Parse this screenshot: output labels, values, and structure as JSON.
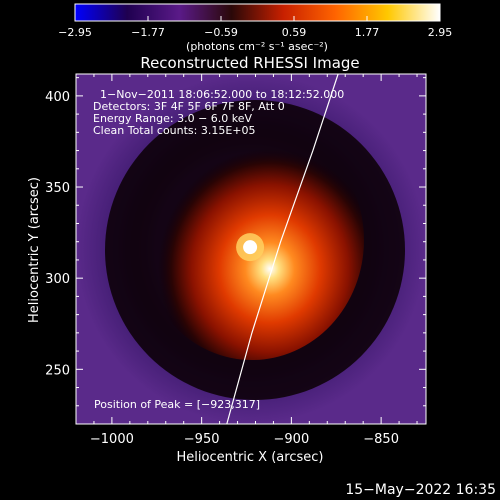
{
  "chart_data": {
    "type": "heatmap",
    "title": "Reconstructed RHESSI Image",
    "xlabel": "Heliocentric X (arcsec)",
    "ylabel": "Heliocentric Y (arcsec)",
    "xlim": [
      -1020,
      -825
    ],
    "ylim": [
      220,
      412
    ],
    "x_ticks": [
      -1000,
      -950,
      -900,
      -850
    ],
    "x_tick_labels": [
      "−1000",
      "−950",
      "−900",
      "−850"
    ],
    "y_ticks": [
      250,
      300,
      350,
      400
    ],
    "y_tick_labels": [
      "250",
      "300",
      "350",
      "400"
    ],
    "colorbar": {
      "min": -2.95,
      "max": 2.95,
      "ticks": [
        -2.95,
        -1.77,
        -0.59,
        0.59,
        1.77,
        2.95
      ],
      "tick_labels": [
        "−2.95",
        "−1.77",
        "−0.59",
        "0.59",
        "1.77",
        "2.95"
      ],
      "unit_label": "(photons cm⁻² s⁻¹ asec⁻²)"
    },
    "annotations": [
      "1−Nov−2011 18:06:52.000 to 18:12:52.000",
      "Detectors: 3F 4F 5F 6F 7F 8F, Att 0",
      "Energy Range: 3.0 − 6.0 keV",
      "Clean    Total counts: 3.15E+05"
    ],
    "peak_label": "Position of Peak = [−923,317]",
    "peak": {
      "x": -923,
      "y": 317
    },
    "limb_curve": [
      {
        "x": -936,
        "y": 220
      },
      {
        "x": -922,
        "y": 270
      },
      {
        "x": -906,
        "y": 320
      },
      {
        "x": -888,
        "y": 370
      },
      {
        "x": -874,
        "y": 412
      }
    ],
    "colormap": [
      "#0000ff",
      "#1f0050",
      "#5a1a88",
      "#2a0808",
      "#c82000",
      "#ff6400",
      "#ffc800",
      "#ffffff"
    ]
  },
  "footer": {
    "timestamp": "15−May−2022 16:35"
  }
}
